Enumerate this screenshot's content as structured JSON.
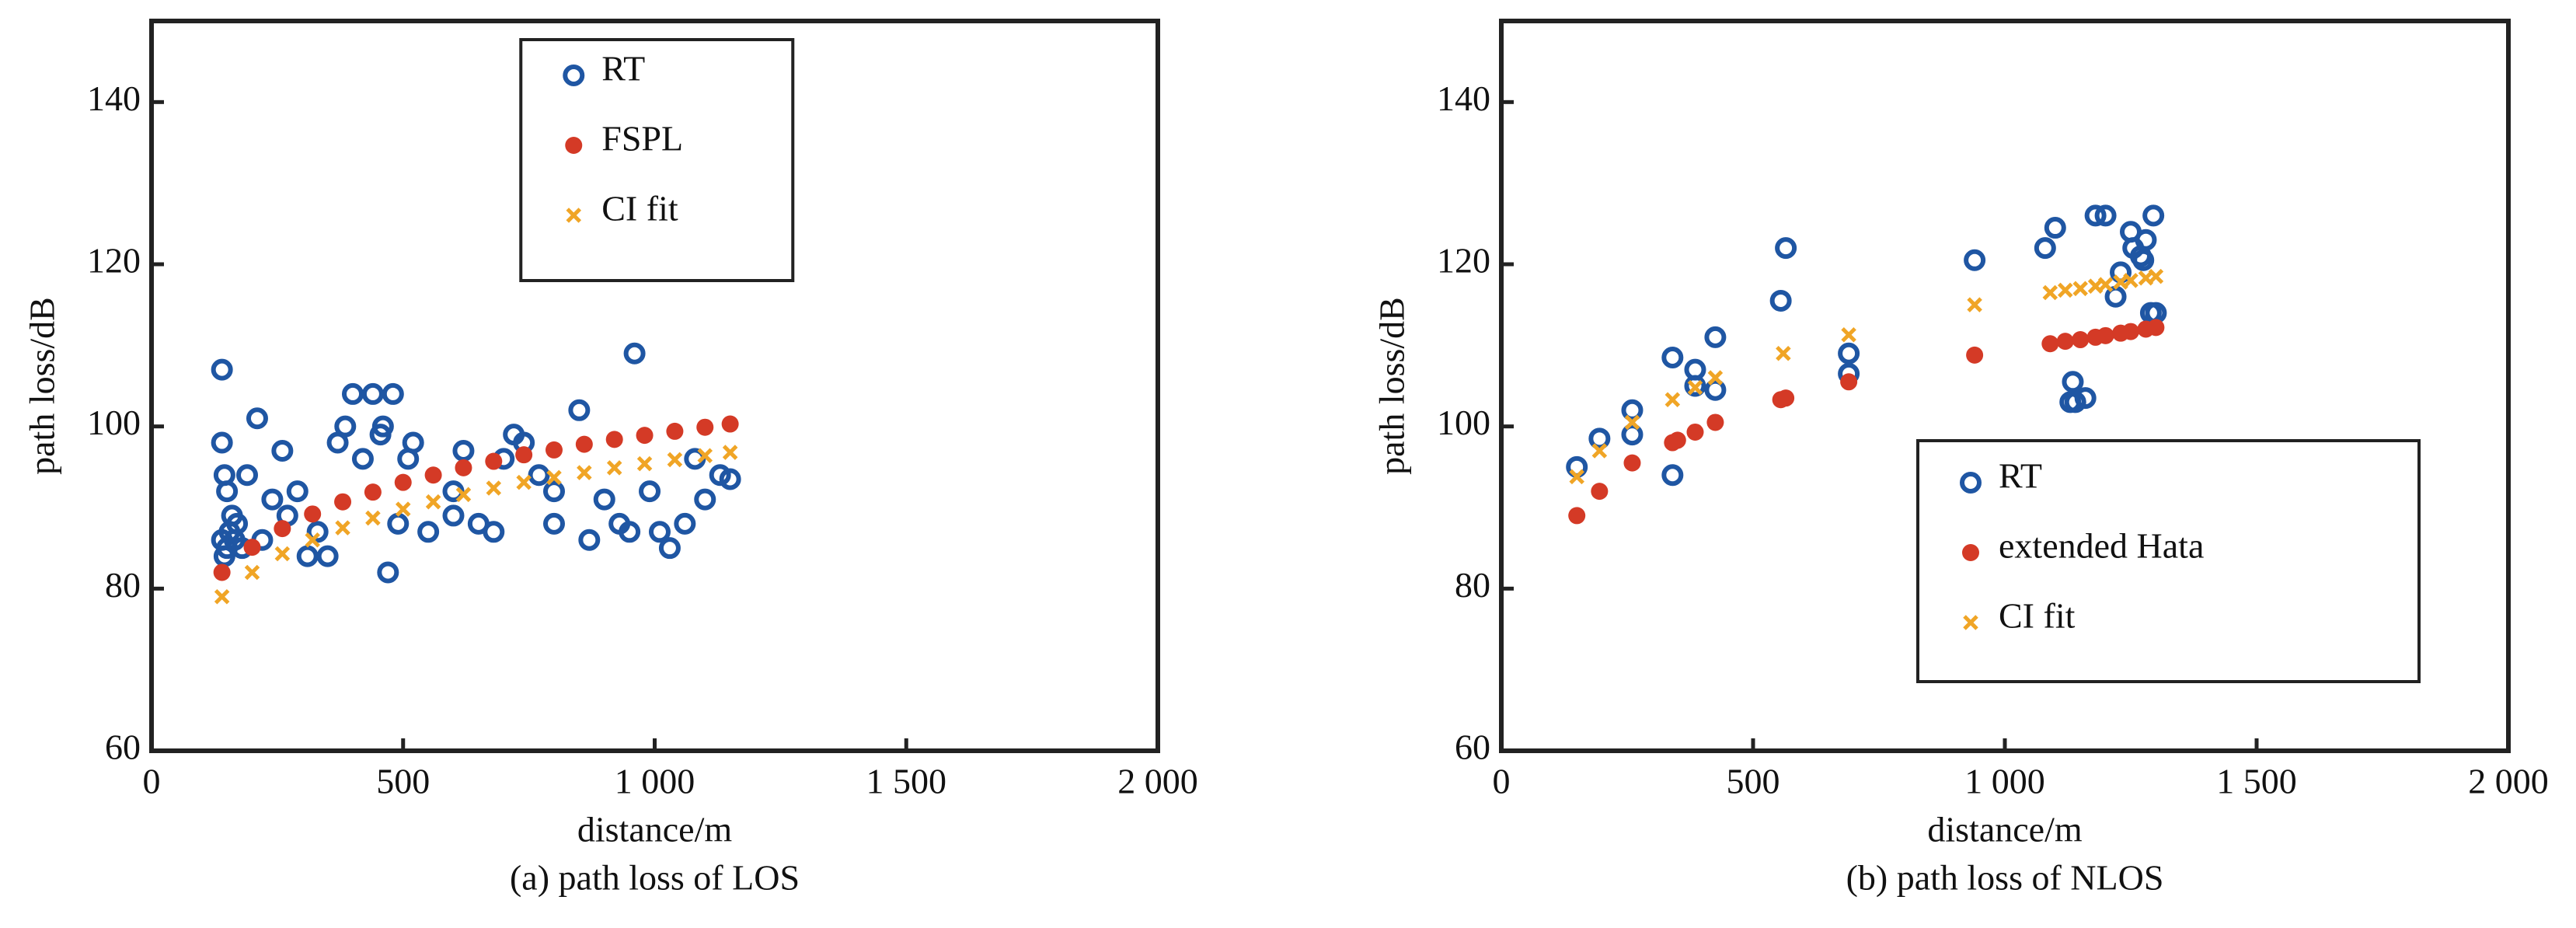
{
  "chart_data": [
    {
      "type": "scatter",
      "xlabel": "distance/m",
      "ylabel": "path loss/dB",
      "caption": "(a) path loss of LOS",
      "xlim": [
        0,
        2000
      ],
      "ylim": [
        60,
        150
      ],
      "xticks": [
        0,
        500,
        {
          "value": 1000,
          "label": "1 000"
        },
        {
          "value": 1500,
          "label": "1 500"
        },
        {
          "value": 2000,
          "label": "2 000"
        }
      ],
      "yticks": [
        60,
        80,
        100,
        120,
        140
      ],
      "grid": false,
      "legend_loc": "upper center",
      "series": [
        {
          "name": "RT",
          "color": "#1f56a3",
          "marker": "open-circle",
          "x": [
            140,
            140,
            145,
            150,
            140,
            145,
            150,
            155,
            160,
            165,
            170,
            180,
            190,
            210,
            220,
            240,
            260,
            270,
            290,
            310,
            330,
            350,
            370,
            385,
            400,
            420,
            440,
            455,
            460,
            470,
            480,
            490,
            510,
            520,
            550,
            600,
            620,
            650,
            680,
            700,
            720,
            740,
            770,
            800,
            850,
            870,
            900,
            930,
            960,
            990,
            1010,
            1030,
            1060,
            1100,
            1130,
            1150,
            600,
            800,
            950,
            1080
          ],
          "values": [
            107,
            98,
            94,
            92,
            86,
            84,
            85,
            87,
            89,
            86,
            88,
            85,
            94,
            101,
            86,
            91,
            97,
            89,
            92,
            84,
            87,
            84,
            98,
            100,
            104,
            96,
            104,
            99,
            100,
            82,
            104,
            88,
            96,
            98,
            87,
            89,
            97,
            88,
            87,
            96,
            99,
            98,
            94,
            88,
            102,
            86,
            91,
            88,
            109,
            92,
            87,
            85,
            88,
            91,
            94,
            93.5,
            92,
            92,
            87,
            96
          ]
        },
        {
          "name": "FSPL",
          "color": "#d43a26",
          "marker": "dot",
          "x": [
            140,
            200,
            260,
            320,
            380,
            440,
            500,
            560,
            620,
            680,
            740,
            800,
            860,
            920,
            980,
            1040,
            1100,
            1150
          ],
          "values": [
            82.0,
            85.1,
            87.4,
            89.2,
            90.7,
            91.9,
            93.1,
            94.0,
            94.9,
            95.7,
            96.5,
            97.1,
            97.8,
            98.4,
            98.9,
            99.4,
            99.9,
            100.3
          ]
        },
        {
          "name": "CI fit",
          "color": "#f0a526",
          "marker": "cross",
          "x": [
            140,
            200,
            260,
            320,
            380,
            440,
            500,
            560,
            620,
            680,
            740,
            800,
            860,
            920,
            980,
            1040,
            1100,
            1150
          ],
          "values": [
            79.0,
            82.0,
            84.3,
            86.0,
            87.5,
            88.7,
            89.8,
            90.7,
            91.6,
            92.4,
            93.1,
            93.7,
            94.3,
            94.9,
            95.4,
            95.9,
            96.4,
            96.8
          ]
        }
      ]
    },
    {
      "type": "scatter",
      "xlabel": "distance/m",
      "ylabel": "path loss/dB",
      "caption": "(b) path loss of NLOS",
      "xlim": [
        0,
        2000
      ],
      "ylim": [
        60,
        150
      ],
      "xticks": [
        0,
        500,
        {
          "value": 1000,
          "label": "1 000"
        },
        {
          "value": 1500,
          "label": "1 500"
        },
        {
          "value": 2000,
          "label": "2 000"
        }
      ],
      "yticks": [
        60,
        80,
        100,
        120,
        140
      ],
      "grid": false,
      "legend_loc": "lower right",
      "series": [
        {
          "name": "RT",
          "color": "#1f56a3",
          "marker": "open-circle",
          "x": [
            150,
            195,
            260,
            260,
            340,
            340,
            385,
            385,
            425,
            425,
            555,
            565,
            690,
            690,
            940,
            1080,
            1100,
            1130,
            1135,
            1140,
            1160,
            1180,
            1200,
            1220,
            1230,
            1250,
            1255,
            1270,
            1275,
            1280,
            1290,
            1295,
            1300
          ],
          "values": [
            95,
            98.5,
            99,
            102,
            108.5,
            94,
            105,
            107,
            104.5,
            111,
            115.5,
            122,
            106.5,
            109,
            120.5,
            122,
            124.5,
            103,
            105.5,
            103,
            103.5,
            126,
            126,
            116,
            119,
            124,
            122,
            121,
            120.5,
            123,
            114,
            126,
            114
          ]
        },
        {
          "name": "extended Hata",
          "color": "#d43a26",
          "marker": "dot",
          "x": [
            150,
            195,
            260,
            340,
            350,
            385,
            425,
            555,
            565,
            690,
            940,
            1090,
            1120,
            1150,
            1180,
            1200,
            1230,
            1250,
            1280,
            1300
          ],
          "values": [
            89,
            92,
            95.5,
            98,
            98.3,
            99.3,
            100.5,
            103.3,
            103.5,
            105.5,
            108.8,
            110.2,
            110.5,
            110.7,
            111.0,
            111.2,
            111.5,
            111.7,
            112.0,
            112.2
          ]
        },
        {
          "name": "CI fit",
          "color": "#f0a526",
          "marker": "cross",
          "x": [
            150,
            195,
            260,
            340,
            385,
            425,
            560,
            690,
            940,
            1090,
            1120,
            1150,
            1180,
            1200,
            1230,
            1250,
            1280,
            1300
          ],
          "values": [
            93.8,
            97,
            100.5,
            103.3,
            104.8,
            106,
            109,
            111.3,
            115,
            116.5,
            116.8,
            117,
            117.3,
            117.5,
            117.8,
            118,
            118.3,
            118.5
          ]
        }
      ]
    }
  ]
}
